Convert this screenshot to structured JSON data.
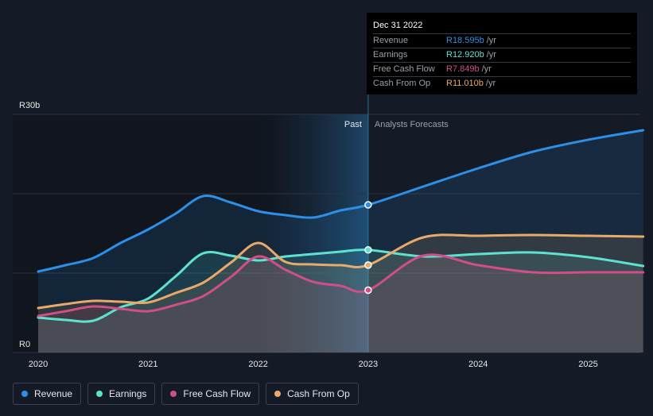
{
  "chart_data": {
    "type": "area",
    "currency_unit": "ZAR",
    "y_top_label": "R30b",
    "y_bottom_label": "R0",
    "ylim": [
      0,
      30
    ],
    "xlim": [
      2020,
      2025.5
    ],
    "x_tick_labels": [
      "2020",
      "2021",
      "2022",
      "2023",
      "2024",
      "2025"
    ],
    "x_ticks": [
      2020,
      2021,
      2022,
      2023,
      2024,
      2025
    ],
    "divider_x": 2023,
    "past_label": "Past",
    "forecast_label": "Analysts Forecasts",
    "series": [
      {
        "name": "Revenue",
        "color": "#2d8fe6",
        "x": [
          2020,
          2020.25,
          2020.5,
          2020.75,
          2021,
          2021.25,
          2021.5,
          2021.75,
          2022,
          2022.25,
          2022.5,
          2022.75,
          2023,
          2023.5,
          2024,
          2024.5,
          2025,
          2025.5
        ],
        "values": [
          10.2,
          11.0,
          11.9,
          13.8,
          15.5,
          17.5,
          19.7,
          18.9,
          17.8,
          17.3,
          17.0,
          17.9,
          18.595,
          20.9,
          23.2,
          25.3,
          26.8,
          28.0
        ]
      },
      {
        "name": "Earnings",
        "color": "#5ee2d0",
        "x": [
          2020,
          2020.25,
          2020.5,
          2020.75,
          2021,
          2021.25,
          2021.5,
          2021.75,
          2022,
          2022.25,
          2022.5,
          2022.75,
          2023,
          2023.5,
          2024,
          2024.5,
          2025,
          2025.5
        ],
        "values": [
          4.4,
          4.1,
          4.0,
          5.7,
          6.8,
          9.6,
          12.5,
          12.2,
          11.6,
          12.1,
          12.4,
          12.7,
          12.92,
          12.1,
          12.4,
          12.6,
          12.0,
          10.9
        ]
      },
      {
        "name": "Free Cash Flow",
        "color": "#cf4f86",
        "x": [
          2020,
          2020.25,
          2020.5,
          2020.75,
          2021,
          2021.25,
          2021.5,
          2021.75,
          2022,
          2022.25,
          2022.5,
          2022.75,
          2023,
          2023.5,
          2024,
          2024.5,
          2025,
          2025.5
        ],
        "values": [
          4.6,
          5.2,
          5.8,
          5.5,
          5.2,
          6.0,
          7.1,
          9.5,
          12.1,
          10.4,
          8.9,
          8.4,
          7.849,
          12.2,
          11.0,
          10.1,
          10.1,
          10.1
        ]
      },
      {
        "name": "Cash From Op",
        "color": "#e8a96a",
        "x": [
          2020,
          2020.25,
          2020.5,
          2020.75,
          2021,
          2021.25,
          2021.5,
          2021.75,
          2022,
          2022.25,
          2022.5,
          2022.75,
          2023,
          2023.5,
          2024,
          2024.5,
          2025,
          2025.5
        ],
        "values": [
          5.6,
          6.1,
          6.5,
          6.4,
          6.3,
          7.5,
          8.8,
          11.3,
          13.8,
          11.4,
          11.1,
          11.0,
          11.01,
          14.5,
          14.7,
          14.8,
          14.7,
          14.6
        ]
      }
    ]
  },
  "tooltip": {
    "date": "Dec 31 2022",
    "rows": [
      {
        "label": "Revenue",
        "value": "R18.595b",
        "unit": "/yr",
        "color": "#2d8fe6"
      },
      {
        "label": "Earnings",
        "value": "R12.920b",
        "unit": "/yr",
        "color": "#5ee2d0"
      },
      {
        "label": "Free Cash Flow",
        "value": "R7.849b",
        "unit": "/yr",
        "color": "#cf4f86"
      },
      {
        "label": "Cash From Op",
        "value": "R11.010b",
        "unit": "/yr",
        "color": "#e8a96a"
      }
    ]
  },
  "legend": [
    {
      "label": "Revenue",
      "color": "#2d8fe6"
    },
    {
      "label": "Earnings",
      "color": "#5ee2d0"
    },
    {
      "label": "Free Cash Flow",
      "color": "#cf4f86"
    },
    {
      "label": "Cash From Op",
      "color": "#e8a96a"
    }
  ]
}
